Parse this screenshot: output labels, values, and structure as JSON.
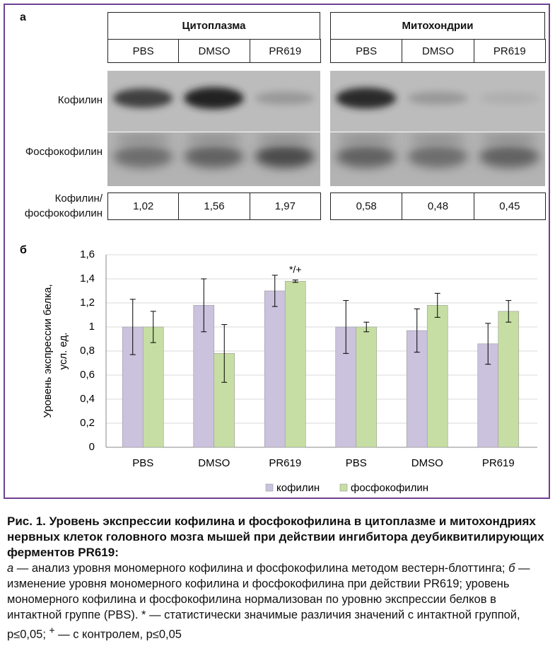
{
  "panel_a": {
    "label": "а",
    "groups": [
      "Цитоплазма",
      "Митохондрии"
    ],
    "lanes": [
      [
        "PBS",
        "DMSO",
        "PR619"
      ],
      [
        "PBS",
        "DMSO",
        "PR619"
      ]
    ],
    "rows": [
      "Кофилин",
      "Фосфокофилин"
    ],
    "ratio_label": [
      "Кофилин/",
      "фосфокофилин"
    ],
    "ratios": [
      [
        "1,02",
        "1,56",
        "1,97"
      ],
      [
        "0,58",
        "0,48",
        "0,45"
      ]
    ]
  },
  "chart_data": {
    "type": "bar",
    "label": "б",
    "ylabel": [
      "Уровень экспрессии белка,",
      "усл. ед."
    ],
    "categories": [
      "PBS",
      "DMSO",
      "PR619",
      "PBS",
      "DMSO",
      "PR619"
    ],
    "series": [
      {
        "name": "кофилин",
        "color": "#cbc2de",
        "values": [
          1.0,
          1.18,
          1.3,
          1.0,
          0.97,
          0.86
        ],
        "errors": [
          0.23,
          0.22,
          0.13,
          0.22,
          0.18,
          0.17
        ]
      },
      {
        "name": "фосфокофилин",
        "color": "#c6dea3",
        "values": [
          1.0,
          0.78,
          1.38,
          1.0,
          1.18,
          1.13
        ],
        "errors": [
          0.13,
          0.24,
          0.01,
          0.04,
          0.1,
          0.09
        ],
        "annotations": [
          null,
          null,
          "*/+",
          null,
          null,
          null
        ]
      }
    ],
    "ylim": [
      0,
      1.6
    ],
    "yticks": [
      0,
      {
        "value": 0.2,
        "label": "0,2"
      },
      {
        "value": 0.4,
        "label": "0,4"
      },
      {
        "value": 0.6,
        "label": "0,6"
      },
      {
        "value": 0.8,
        "label": "0,8"
      },
      1,
      {
        "value": 1.2,
        "label": "1,2"
      },
      {
        "value": 1.4,
        "label": "1,4"
      },
      {
        "value": 1.6,
        "label": "1,6"
      }
    ],
    "grid": true,
    "legend": "bottom"
  },
  "caption": {
    "title": "Рис. 1. Уровень экспрессии кофилина и фосфокофилина в цитоплазме и митохондриях нервных клеток головного мозга мышей при действии ингибитора деубиквитилирующих ферментов PR619:",
    "parts": [
      "а",
      " — анализ уровня мономерного кофилина и фосфокофилина методом вестерн-блоттинга; ",
      "б",
      " — изменение уровня мономерного кофилина и фосфокофилина при действии PR619; уровень мономерного кофилина и фосфокофилина нормализован по уровню экспрессии белков в интактной группе (PBS). * — статистически значимые различия значений с интактной группой, р≤0,05; ",
      "+",
      " — с контролем, р≤0,05"
    ]
  }
}
